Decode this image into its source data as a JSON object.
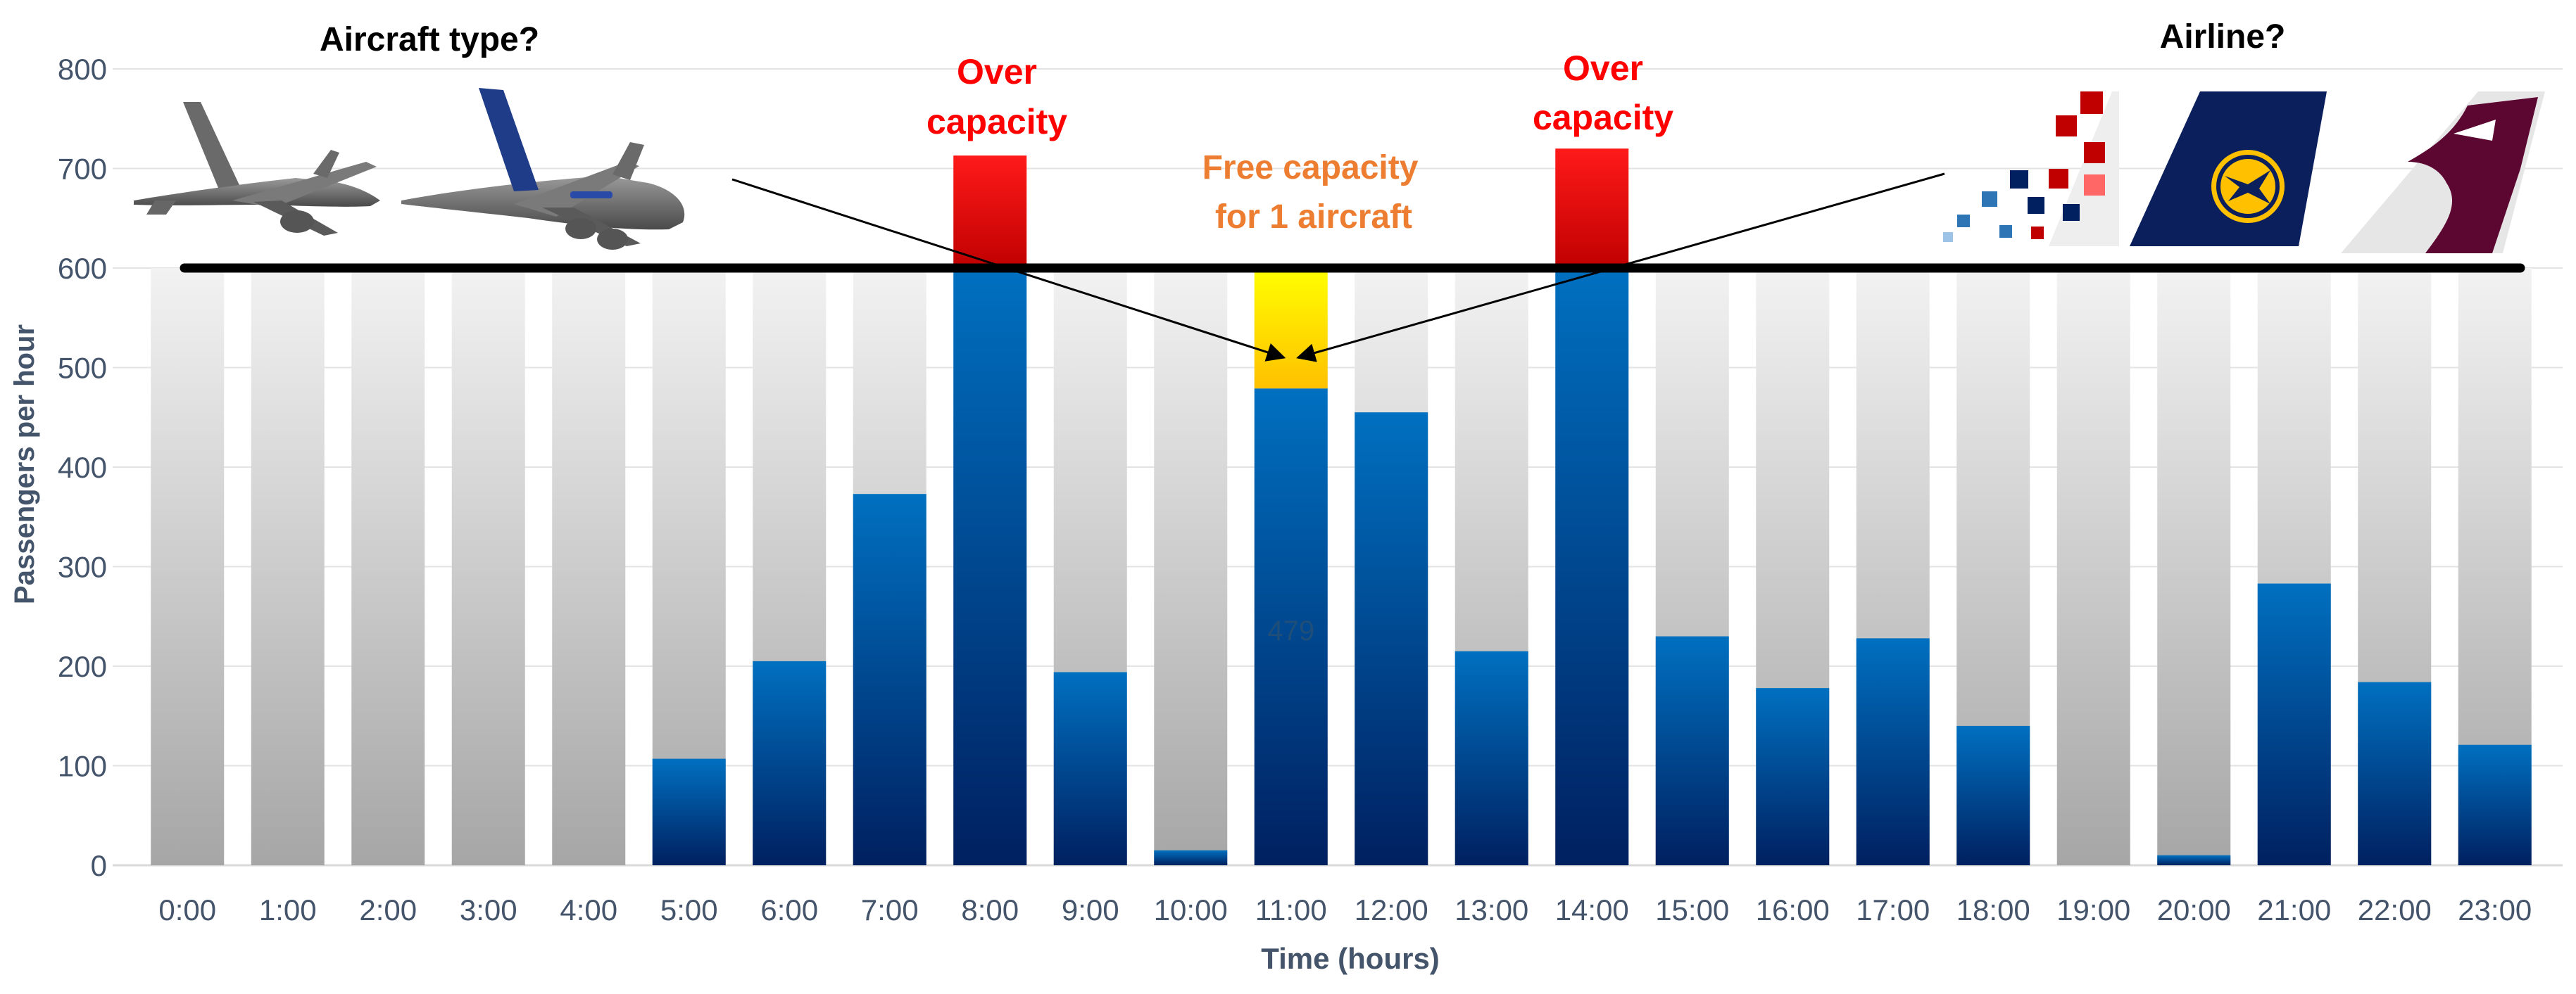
{
  "chart_data": {
    "type": "bar",
    "categories": [
      "0:00",
      "1:00",
      "2:00",
      "3:00",
      "4:00",
      "5:00",
      "6:00",
      "7:00",
      "8:00",
      "9:00",
      "10:00",
      "11:00",
      "12:00",
      "13:00",
      "14:00",
      "15:00",
      "16:00",
      "17:00",
      "18:00",
      "19:00",
      "20:00",
      "21:00",
      "22:00",
      "23:00"
    ],
    "series": [
      {
        "values": [
          0,
          0,
          0,
          0,
          0,
          107,
          205,
          373,
          600,
          194,
          15,
          479,
          455,
          215,
          600,
          230,
          178,
          228,
          140,
          0,
          10,
          283,
          184,
          121
        ]
      }
    ],
    "capacity": 600,
    "over_capacity_tops": [
      {
        "category": "8:00",
        "value": 713
      },
      {
        "category": "14:00",
        "value": 720
      }
    ],
    "free_capacity": {
      "category": "11:00",
      "from": 479,
      "to": 600
    },
    "data_labels": [
      {
        "category": "11:00",
        "text": "479"
      }
    ],
    "xlabel": "Time (hours)",
    "ylabel": "Passengers per hour",
    "ylim": [
      0,
      800
    ],
    "yticks": [
      0,
      100,
      200,
      300,
      400,
      500,
      600,
      700,
      800
    ],
    "grid": true,
    "annotations": {
      "aircraft_type": "Aircraft type?",
      "airline": "Airline?",
      "over_capacity_line1": "Over",
      "over_capacity_line2": "capacity",
      "free_capacity_line1": "Free capacity",
      "free_capacity_line2": "for 1 aircraft"
    },
    "icons": {
      "aircraft": [
        "twin-jet-aircraft-icon",
        "airbus-a380-aircraft-icon"
      ],
      "airlines": [
        "croatia-airlines-tail-icon",
        "lufthansa-tail-icon",
        "qatar-airways-tail-icon"
      ]
    },
    "colors": {
      "bar_top": "#0070c0",
      "bar_bottom": "#002060",
      "background_bar_top": "#f2f2f2",
      "background_bar_bottom": "#a6a6a6",
      "over_capacity": "#ff0000",
      "free_capacity_top": "#ffff00",
      "free_capacity_bottom": "#ffc000",
      "capacity_line": "#000000",
      "over_capacity_text": "#ff0000",
      "free_capacity_text": "#ed7d31",
      "axis_text": "#44546a"
    }
  }
}
